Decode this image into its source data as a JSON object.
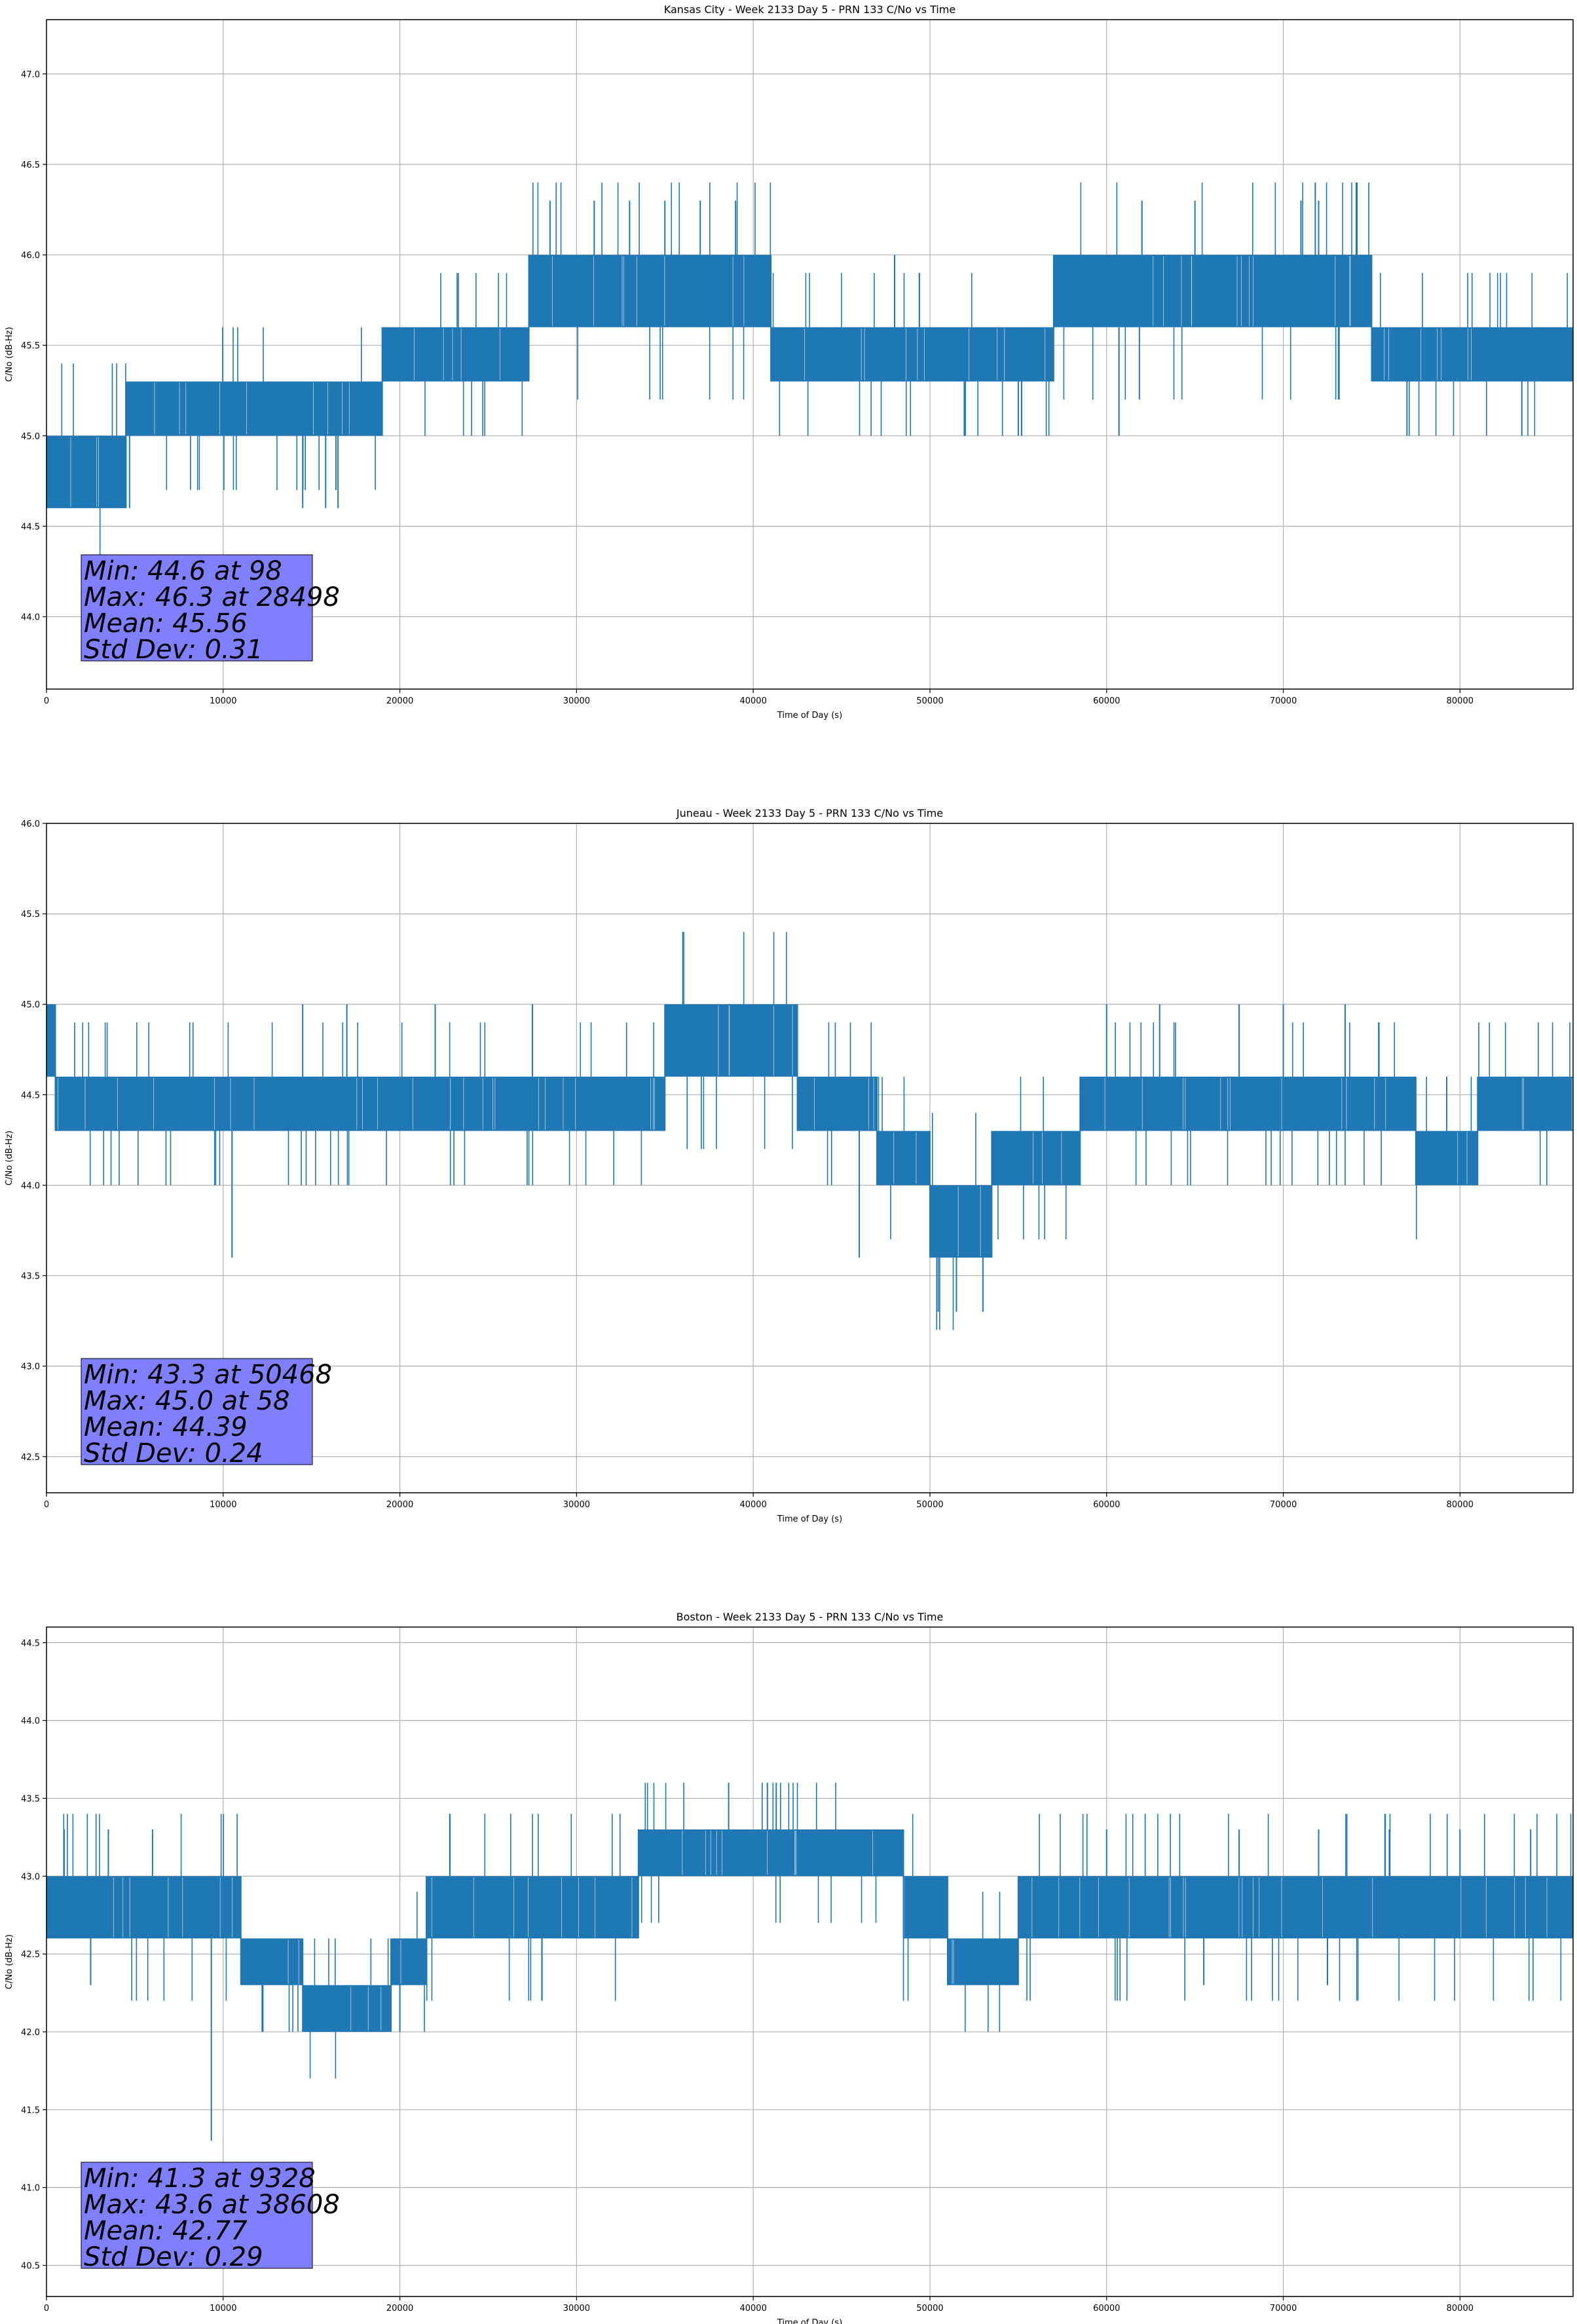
{
  "figure": {
    "line_color": "#1f77b4",
    "stats_box_color": "#8080ff",
    "grid_color": "#b0b0b0"
  },
  "chart_data": [
    {
      "type": "line",
      "title": "Kansas City - Week 2133 Day 5 - PRN 133 C/No vs Time",
      "xlabel": "Time of Day (s)",
      "ylabel": "C/No (dB-Hz)",
      "xlim": [
        0,
        86400
      ],
      "ylim": [
        43.6,
        47.3
      ],
      "xticks": [
        0,
        10000,
        20000,
        30000,
        40000,
        50000,
        60000,
        70000,
        80000
      ],
      "yticks": [
        44.0,
        44.5,
        45.0,
        45.5,
        46.0,
        46.5,
        47.0
      ],
      "grid": true,
      "series": [
        {
          "segments": [
            {
              "x": [
                0,
                4500
              ],
              "low": 44.6,
              "high": 45.0
            },
            {
              "x": [
                4500,
                19000
              ],
              "low": 45.0,
              "high": 45.3
            },
            {
              "x": [
                19000,
                27300
              ],
              "low": 45.3,
              "high": 45.6
            },
            {
              "x": [
                27300,
                30000
              ],
              "low": 45.6,
              "high": 46.0
            },
            {
              "x": [
                30000,
                41000
              ],
              "low": 45.6,
              "high": 46.0
            },
            {
              "x": [
                41000,
                57000
              ],
              "low": 45.3,
              "high": 45.6
            },
            {
              "x": [
                57000,
                75000
              ],
              "low": 45.6,
              "high": 46.0
            },
            {
              "x": [
                75000,
                86400
              ],
              "low": 45.3,
              "high": 45.6
            }
          ],
          "spikes": [
            {
              "x": 28498,
              "y": 46.3
            },
            {
              "x": 31000,
              "y": 46.3
            },
            {
              "x": 33000,
              "y": 46.3
            },
            {
              "x": 35000,
              "y": 46.3
            },
            {
              "x": 37000,
              "y": 46.3
            },
            {
              "x": 39000,
              "y": 46.3
            },
            {
              "x": 48000,
              "y": 46.0
            },
            {
              "x": 52000,
              "y": 45.0
            },
            {
              "x": 55000,
              "y": 45.0
            },
            {
              "x": 62000,
              "y": 46.3
            },
            {
              "x": 65000,
              "y": 46.3
            },
            {
              "x": 71000,
              "y": 46.3
            },
            {
              "x": 72000,
              "y": 46.3
            },
            {
              "x": 98,
              "y": 44.6
            },
            {
              "x": 2800,
              "y": 44.6
            },
            {
              "x": 4700,
              "y": 44.6
            },
            {
              "x": 14500,
              "y": 44.6
            },
            {
              "x": 15800,
              "y": 44.6
            },
            {
              "x": 16500,
              "y": 44.6
            },
            {
              "x": 60700,
              "y": 45.0
            },
            {
              "x": 77000,
              "y": 45.0
            },
            {
              "x": 83500,
              "y": 45.0
            }
          ]
        }
      ],
      "stats": [
        "Min: 44.6 at 98",
        "Max: 46.3 at 28498",
        "Mean: 45.56",
        "Std Dev: 0.31"
      ]
    },
    {
      "type": "line",
      "title": "Juneau - Week 2133 Day 5 - PRN 133 C/No vs Time",
      "xlabel": "Time of Day (s)",
      "ylabel": "C/No (dB-Hz)",
      "xlim": [
        0,
        86400
      ],
      "ylim": [
        42.3,
        46.0
      ],
      "xticks": [
        0,
        10000,
        20000,
        30000,
        40000,
        50000,
        60000,
        70000,
        80000
      ],
      "yticks": [
        42.5,
        43.0,
        43.5,
        44.0,
        44.5,
        45.0,
        45.5,
        46.0
      ],
      "grid": true,
      "series": [
        {
          "segments": [
            {
              "x": [
                0,
                500
              ],
              "low": 44.6,
              "high": 45.0
            },
            {
              "x": [
                500,
                35000
              ],
              "low": 44.3,
              "high": 44.6
            },
            {
              "x": [
                35000,
                42500
              ],
              "low": 44.6,
              "high": 45.0
            },
            {
              "x": [
                42500,
                47000
              ],
              "low": 44.3,
              "high": 44.6
            },
            {
              "x": [
                47000,
                50000
              ],
              "low": 44.0,
              "high": 44.3
            },
            {
              "x": [
                50000,
                53500
              ],
              "low": 43.6,
              "high": 44.0
            },
            {
              "x": [
                53500,
                58500
              ],
              "low": 44.0,
              "high": 44.3
            },
            {
              "x": [
                58500,
                77500
              ],
              "low": 44.3,
              "high": 44.6
            },
            {
              "x": [
                77500,
                81000
              ],
              "low": 44.0,
              "high": 44.3
            },
            {
              "x": [
                81000,
                86400
              ],
              "low": 44.3,
              "high": 44.6
            }
          ],
          "spikes": [
            {
              "x": 58,
              "y": 45.0
            },
            {
              "x": 50468,
              "y": 43.3
            },
            {
              "x": 51500,
              "y": 43.3
            },
            {
              "x": 53000,
              "y": 43.3
            },
            {
              "x": 46000,
              "y": 43.6
            },
            {
              "x": 10500,
              "y": 43.6
            },
            {
              "x": 14500,
              "y": 45.0
            },
            {
              "x": 17000,
              "y": 45.0
            },
            {
              "x": 22000,
              "y": 45.0
            },
            {
              "x": 27500,
              "y": 45.0
            },
            {
              "x": 60000,
              "y": 45.0
            },
            {
              "x": 63000,
              "y": 45.0
            },
            {
              "x": 67500,
              "y": 45.0
            },
            {
              "x": 70000,
              "y": 45.0
            },
            {
              "x": 73500,
              "y": 45.0
            }
          ]
        }
      ],
      "stats": [
        "Min: 43.3 at 50468",
        "Max: 45.0 at 58",
        "Mean: 44.39",
        "Std Dev: 0.24"
      ]
    },
    {
      "type": "line",
      "title": "Boston - Week 2133 Day 5 - PRN 133 C/No vs Time",
      "xlabel": "Time of Day (s)",
      "ylabel": "C/No (dB-Hz)",
      "xlim": [
        0,
        86400
      ],
      "ylim": [
        40.3,
        44.6
      ],
      "xticks": [
        0,
        10000,
        20000,
        30000,
        40000,
        50000,
        60000,
        70000,
        80000
      ],
      "yticks": [
        40.5,
        41.0,
        41.5,
        42.0,
        42.5,
        43.0,
        43.5,
        44.0,
        44.5
      ],
      "grid": true,
      "series": [
        {
          "segments": [
            {
              "x": [
                0,
                11000
              ],
              "low": 42.6,
              "high": 43.0
            },
            {
              "x": [
                11000,
                14500
              ],
              "low": 42.3,
              "high": 42.6
            },
            {
              "x": [
                14500,
                19500
              ],
              "low": 42.0,
              "high": 42.3
            },
            {
              "x": [
                19500,
                21500
              ],
              "low": 42.3,
              "high": 42.6
            },
            {
              "x": [
                21500,
                33500
              ],
              "low": 42.6,
              "high": 43.0
            },
            {
              "x": [
                33500,
                48500
              ],
              "low": 43.0,
              "high": 43.3
            },
            {
              "x": [
                48500,
                51000
              ],
              "low": 42.6,
              "high": 43.0
            },
            {
              "x": [
                51000,
                55000
              ],
              "low": 42.3,
              "high": 42.6
            },
            {
              "x": [
                55000,
                86400
              ],
              "low": 42.6,
              "high": 43.0
            }
          ],
          "spikes": [
            {
              "x": 9328,
              "y": 41.3
            },
            {
              "x": 38608,
              "y": 43.6
            },
            {
              "x": 40800,
              "y": 43.6
            },
            {
              "x": 41300,
              "y": 43.6
            },
            {
              "x": 1000,
              "y": 43.3
            },
            {
              "x": 3500,
              "y": 43.3
            },
            {
              "x": 6000,
              "y": 43.3
            },
            {
              "x": 60000,
              "y": 43.3
            },
            {
              "x": 67500,
              "y": 43.3
            },
            {
              "x": 72000,
              "y": 43.3
            },
            {
              "x": 76000,
              "y": 43.3
            },
            {
              "x": 80000,
              "y": 43.3
            },
            {
              "x": 84000,
              "y": 43.3
            },
            {
              "x": 2500,
              "y": 42.3
            },
            {
              "x": 20000,
              "y": 42.0
            },
            {
              "x": 65500,
              "y": 42.3
            },
            {
              "x": 72500,
              "y": 42.3
            }
          ]
        }
      ],
      "stats": [
        "Min: 41.3 at 9328",
        "Max: 43.6 at 38608",
        "Mean: 42.77",
        "Std Dev: 0.29"
      ]
    }
  ]
}
